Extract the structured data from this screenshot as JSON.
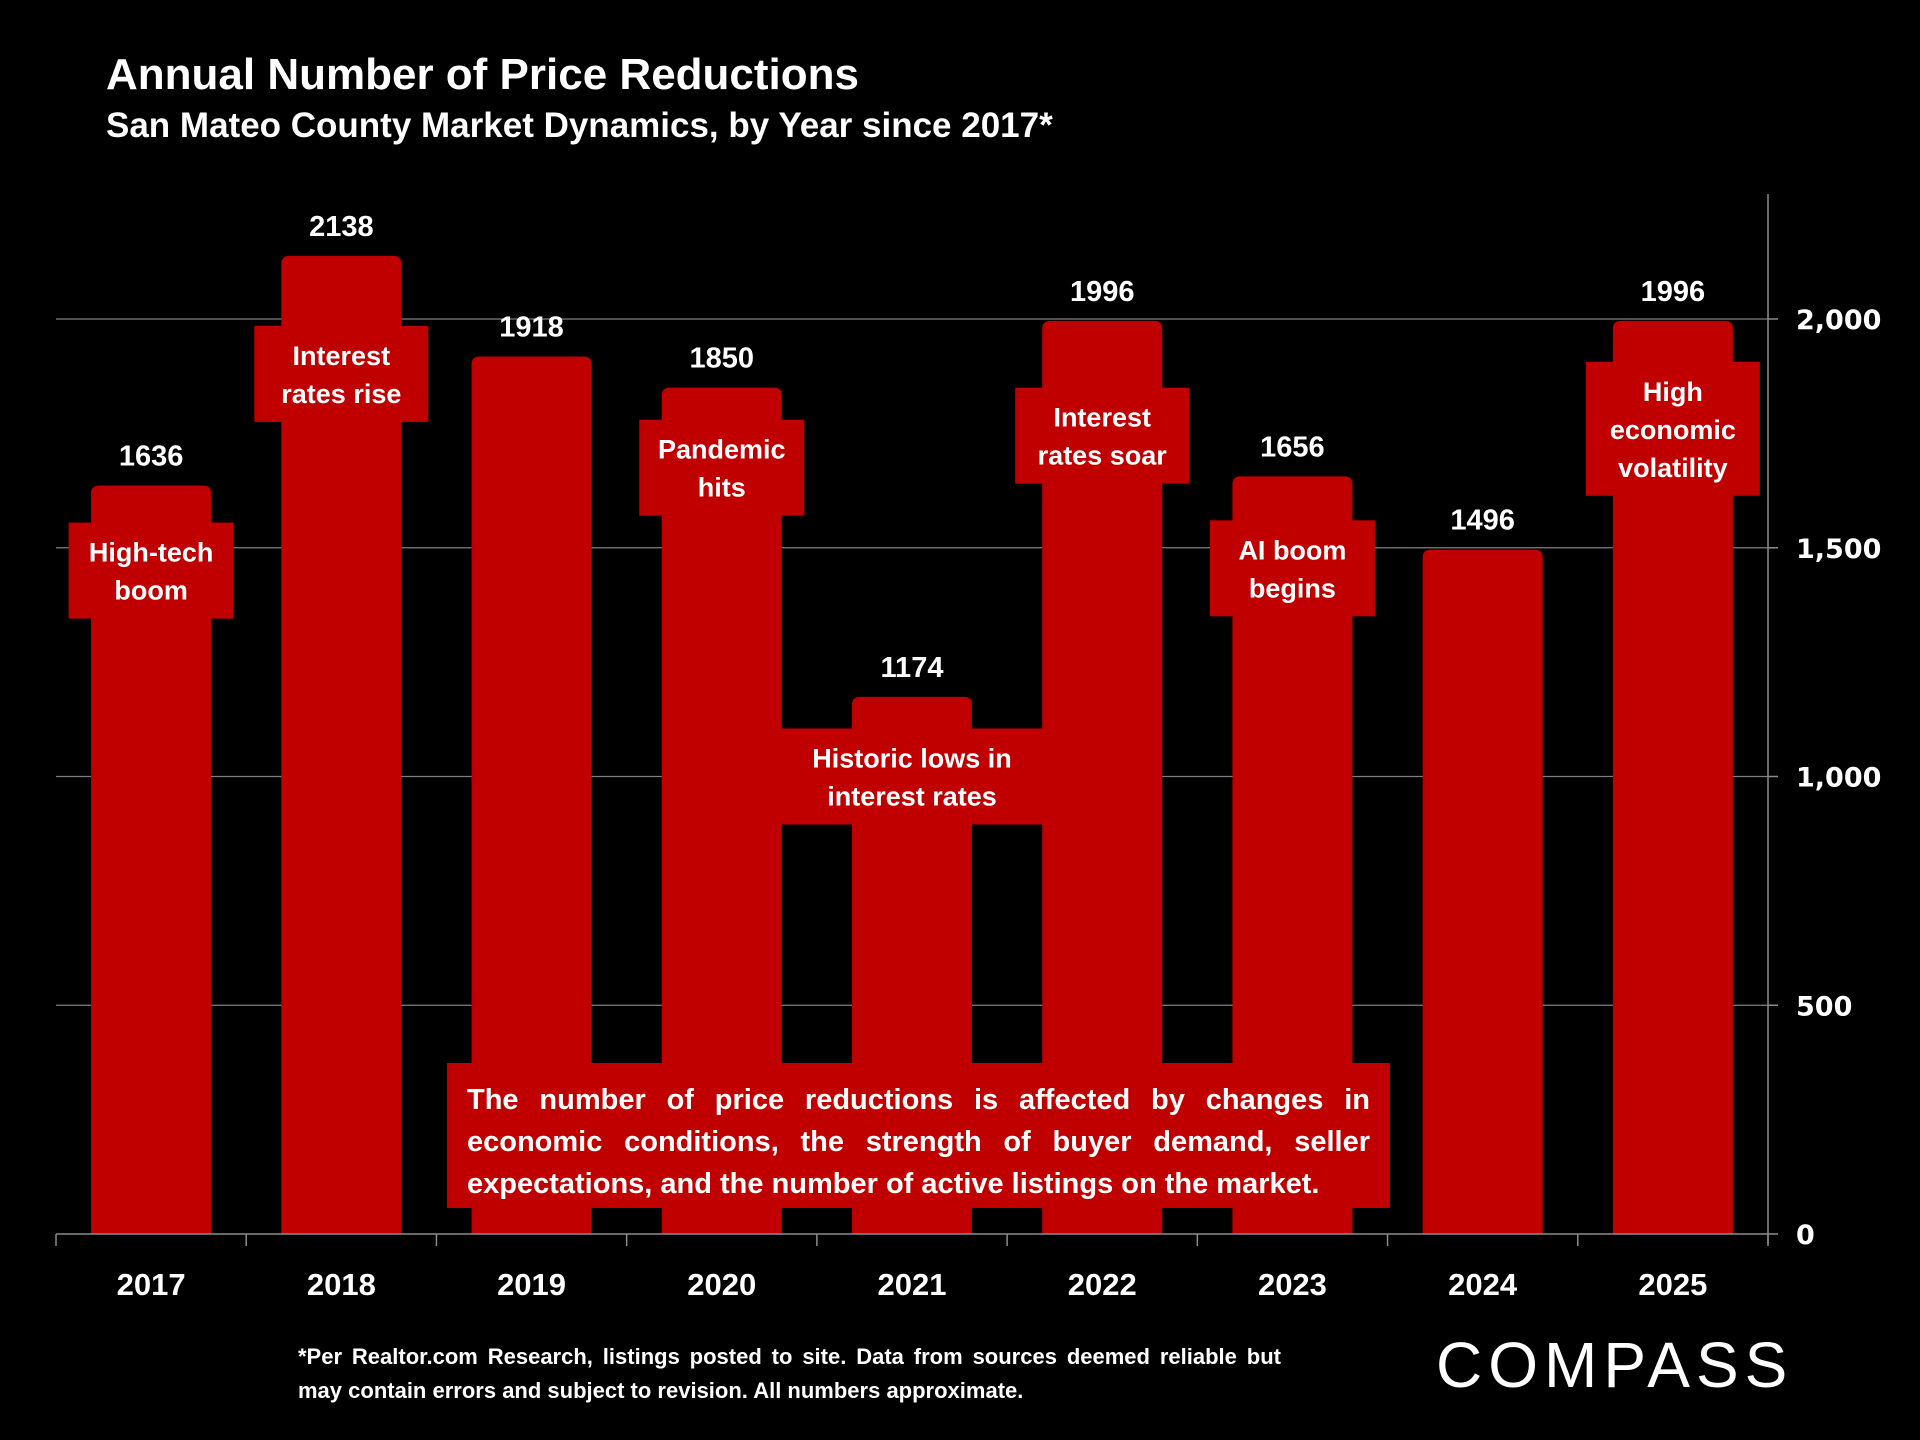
{
  "header": {
    "title": "Annual Number of Price Reductions",
    "subtitle": "San Mateo County Market Dynamics, by Year since 2017*"
  },
  "chart_data": {
    "type": "bar",
    "title": "Annual Number of Price Reductions",
    "subtitle": "San Mateo County Market Dynamics, by Year since 2017*",
    "categories": [
      "2017",
      "2018",
      "2019",
      "2020",
      "2021",
      "2022",
      "2023",
      "2024",
      "2025"
    ],
    "values": [
      1636,
      2138,
      1918,
      1850,
      1174,
      1996,
      1656,
      1496,
      1996
    ],
    "data_labels": [
      "1636",
      "2138",
      "1918",
      "1850",
      "1174",
      "1996",
      "1656",
      "1496",
      "1996"
    ],
    "annotations": [
      {
        "category": "2017",
        "lines": [
          "High-tech",
          "boom"
        ],
        "at_value": 1450
      },
      {
        "category": "2018",
        "lines": [
          "Interest",
          "rates rise"
        ],
        "at_value": 1880
      },
      {
        "category": "2020",
        "lines": [
          "Pandemic",
          "hits"
        ],
        "at_value": 1675
      },
      {
        "category": "2021",
        "lines": [
          "Historic lows in",
          "interest rates"
        ],
        "at_value": 1000
      },
      {
        "category": "2022",
        "lines": [
          "Interest",
          "rates soar"
        ],
        "at_value": 1745
      },
      {
        "category": "2023",
        "lines": [
          "AI boom",
          "begins"
        ],
        "at_value": 1455
      },
      {
        "category": "2025",
        "lines": [
          "High",
          "economic",
          "volatility"
        ],
        "at_value": 1760
      }
    ],
    "xlabel": "",
    "ylabel": "",
    "ylim": [
      0,
      2250
    ],
    "yticks": [
      0,
      500,
      1000,
      1500,
      2000
    ],
    "ytick_labels": [
      "0",
      "500",
      "1,000",
      "1,500",
      "2,000"
    ],
    "y_axis_side": "right",
    "grid": true,
    "bar_color": "#C00000",
    "background": "#000000"
  },
  "note": "The number of price reductions is affected by changes in economic conditions, the strength of buyer demand, seller expectations, and the number of active listings on the market.",
  "footnote": "*Per Realtor.com Research, listings posted to site. Data from sources deemed reliable but may contain errors and subject to revision. All numbers approximate.",
  "logo": "COMPASS"
}
